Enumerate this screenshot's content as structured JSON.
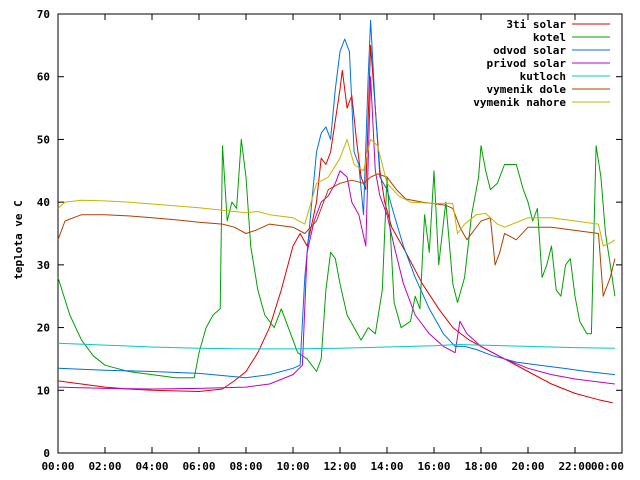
{
  "chart_data": {
    "type": "line",
    "title": "",
    "xlabel": "",
    "ylabel": "teplota ve C",
    "ylim": [
      0,
      70
    ],
    "xlim": [
      "00:00",
      "00:00"
    ],
    "x_ticks": [
      "00:00",
      "02:00",
      "04:00",
      "06:00",
      "08:00",
      "10:00",
      "12:00",
      "14:00",
      "16:00",
      "18:00",
      "20:00",
      "22:00",
      "00:00"
    ],
    "y_ticks": [
      0,
      10,
      20,
      30,
      40,
      50,
      60,
      70
    ],
    "grid": false,
    "legend_position": "top-right",
    "series": [
      {
        "name": "3ti solar",
        "color": "#e00000",
        "points": [
          [
            0,
            11.5
          ],
          [
            1,
            11
          ],
          [
            2,
            10.5
          ],
          [
            3,
            10.2
          ],
          [
            4,
            10
          ],
          [
            5,
            9.9
          ],
          [
            6,
            9.8
          ],
          [
            7,
            10.2
          ],
          [
            7.5,
            11.5
          ],
          [
            8,
            13
          ],
          [
            8.5,
            16
          ],
          [
            9,
            20
          ],
          [
            9.5,
            26
          ],
          [
            10,
            33
          ],
          [
            10.3,
            35
          ],
          [
            10.6,
            33
          ],
          [
            11,
            40
          ],
          [
            11.2,
            47
          ],
          [
            11.4,
            46
          ],
          [
            11.6,
            48
          ],
          [
            11.8,
            53
          ],
          [
            12,
            58
          ],
          [
            12.1,
            61
          ],
          [
            12.3,
            55
          ],
          [
            12.5,
            57
          ],
          [
            12.7,
            50
          ],
          [
            12.9,
            44
          ],
          [
            13.1,
            42
          ],
          [
            13.3,
            65
          ],
          [
            13.5,
            55
          ],
          [
            13.7,
            45
          ],
          [
            13.9,
            40
          ],
          [
            14.2,
            36
          ],
          [
            14.8,
            32
          ],
          [
            15.5,
            27
          ],
          [
            16.2,
            23
          ],
          [
            16.8,
            20
          ],
          [
            17.5,
            18
          ],
          [
            18,
            17
          ],
          [
            19,
            15
          ],
          [
            20,
            13
          ],
          [
            21,
            11
          ],
          [
            22,
            9.5
          ],
          [
            23,
            8.5
          ],
          [
            23.6,
            8
          ]
        ]
      },
      {
        "name": "kotel",
        "color": "#00a000",
        "points": [
          [
            0,
            28
          ],
          [
            0.5,
            22
          ],
          [
            1,
            18
          ],
          [
            1.5,
            15.5
          ],
          [
            2,
            14
          ],
          [
            3,
            13
          ],
          [
            4,
            12.5
          ],
          [
            5,
            12
          ],
          [
            5.8,
            12
          ],
          [
            6,
            16
          ],
          [
            6.3,
            20
          ],
          [
            6.6,
            22
          ],
          [
            6.9,
            23
          ],
          [
            7,
            49
          ],
          [
            7.2,
            37
          ],
          [
            7.4,
            40
          ],
          [
            7.6,
            39
          ],
          [
            7.8,
            50
          ],
          [
            8,
            44
          ],
          [
            8.2,
            33
          ],
          [
            8.5,
            26
          ],
          [
            8.8,
            22
          ],
          [
            9.2,
            20
          ],
          [
            9.5,
            23
          ],
          [
            9.8,
            20
          ],
          [
            10.2,
            16
          ],
          [
            10.6,
            15
          ],
          [
            11,
            13
          ],
          [
            11.2,
            15
          ],
          [
            11.4,
            26
          ],
          [
            11.6,
            32
          ],
          [
            11.8,
            31
          ],
          [
            12,
            27
          ],
          [
            12.3,
            22
          ],
          [
            12.6,
            20
          ],
          [
            12.9,
            18
          ],
          [
            13.2,
            20
          ],
          [
            13.5,
            19
          ],
          [
            13.8,
            26
          ],
          [
            14,
            44
          ],
          [
            14.1,
            38
          ],
          [
            14.3,
            24
          ],
          [
            14.6,
            20
          ],
          [
            15,
            21
          ],
          [
            15.2,
            25
          ],
          [
            15.4,
            23
          ],
          [
            15.6,
            38
          ],
          [
            15.8,
            32
          ],
          [
            16,
            45
          ],
          [
            16.2,
            30
          ],
          [
            16.5,
            40
          ],
          [
            16.8,
            27
          ],
          [
            17,
            24
          ],
          [
            17.3,
            28
          ],
          [
            17.6,
            38
          ],
          [
            17.9,
            44
          ],
          [
            18,
            49
          ],
          [
            18.2,
            45
          ],
          [
            18.4,
            42
          ],
          [
            18.7,
            43
          ],
          [
            19,
            46
          ],
          [
            19.5,
            46
          ],
          [
            19.8,
            42
          ],
          [
            20,
            40
          ],
          [
            20.2,
            37
          ],
          [
            20.4,
            39
          ],
          [
            20.6,
            28
          ],
          [
            20.8,
            30
          ],
          [
            21,
            33
          ],
          [
            21.2,
            26
          ],
          [
            21.4,
            25
          ],
          [
            21.6,
            30
          ],
          [
            21.8,
            31
          ],
          [
            22,
            25
          ],
          [
            22.2,
            21
          ],
          [
            22.5,
            19
          ],
          [
            22.7,
            19
          ],
          [
            22.9,
            49
          ],
          [
            23.1,
            44
          ],
          [
            23.3,
            35
          ],
          [
            23.5,
            30
          ],
          [
            23.7,
            25
          ]
        ]
      },
      {
        "name": "odvod solar",
        "color": "#0070e0",
        "points": [
          [
            0,
            13.5
          ],
          [
            2,
            13.2
          ],
          [
            4,
            13
          ],
          [
            6,
            12.7
          ],
          [
            8,
            12
          ],
          [
            9,
            12.5
          ],
          [
            10,
            13.5
          ],
          [
            10.3,
            14
          ],
          [
            10.5,
            28
          ],
          [
            10.8,
            40
          ],
          [
            11,
            48
          ],
          [
            11.2,
            51
          ],
          [
            11.4,
            52
          ],
          [
            11.6,
            50
          ],
          [
            11.8,
            58
          ],
          [
            12,
            64
          ],
          [
            12.2,
            66
          ],
          [
            12.4,
            64
          ],
          [
            12.6,
            48
          ],
          [
            12.8,
            46
          ],
          [
            13,
            38
          ],
          [
            13.2,
            60
          ],
          [
            13.3,
            69
          ],
          [
            13.5,
            55
          ],
          [
            13.7,
            44
          ],
          [
            14,
            42
          ],
          [
            14.3,
            38
          ],
          [
            14.7,
            33
          ],
          [
            15.2,
            28
          ],
          [
            15.8,
            23
          ],
          [
            16.4,
            19
          ],
          [
            16.9,
            17
          ],
          [
            17.3,
            17
          ],
          [
            17.8,
            16.5
          ],
          [
            18.5,
            15.5
          ],
          [
            19.5,
            14.5
          ],
          [
            20.5,
            14
          ],
          [
            21.5,
            13.5
          ],
          [
            22.5,
            13
          ],
          [
            23.7,
            12.5
          ]
        ]
      },
      {
        "name": "privod solar",
        "color": "#c000c0",
        "points": [
          [
            0,
            10.5
          ],
          [
            2,
            10.3
          ],
          [
            4,
            10.2
          ],
          [
            6,
            10.3
          ],
          [
            8,
            10.5
          ],
          [
            9,
            11
          ],
          [
            10,
            12.5
          ],
          [
            10.4,
            14
          ],
          [
            10.6,
            32
          ],
          [
            10.9,
            37
          ],
          [
            11.2,
            40
          ],
          [
            11.5,
            41
          ],
          [
            11.8,
            43
          ],
          [
            12,
            45
          ],
          [
            12.3,
            44
          ],
          [
            12.5,
            40
          ],
          [
            12.8,
            38
          ],
          [
            13.1,
            33
          ],
          [
            13.3,
            60
          ],
          [
            13.5,
            45
          ],
          [
            13.7,
            41
          ],
          [
            14,
            38
          ],
          [
            14.3,
            33
          ],
          [
            14.7,
            27
          ],
          [
            15.2,
            22
          ],
          [
            15.8,
            19
          ],
          [
            16.4,
            17
          ],
          [
            16.9,
            16
          ],
          [
            17.1,
            21
          ],
          [
            17.4,
            19
          ],
          [
            18,
            17
          ],
          [
            19,
            15
          ],
          [
            20,
            13.5
          ],
          [
            21,
            12.5
          ],
          [
            22,
            11.8
          ],
          [
            23.7,
            11
          ]
        ]
      },
      {
        "name": "kutloch",
        "color": "#00c8c8",
        "points": [
          [
            0,
            17.5
          ],
          [
            2,
            17.2
          ],
          [
            4,
            16.9
          ],
          [
            6,
            16.7
          ],
          [
            8,
            16.6
          ],
          [
            10,
            16.6
          ],
          [
            12,
            16.7
          ],
          [
            14,
            16.9
          ],
          [
            16,
            17.1
          ],
          [
            17,
            17.3
          ],
          [
            18,
            17.2
          ],
          [
            20,
            17
          ],
          [
            22,
            16.8
          ],
          [
            23.7,
            16.7
          ]
        ]
      },
      {
        "name": "vymenik dole",
        "color": "#b04000",
        "points": [
          [
            0,
            34
          ],
          [
            0.3,
            37
          ],
          [
            1,
            38
          ],
          [
            2,
            38
          ],
          [
            3,
            37.8
          ],
          [
            4,
            37.5
          ],
          [
            5,
            37.2
          ],
          [
            6,
            36.8
          ],
          [
            7,
            36.5
          ],
          [
            7.5,
            36
          ],
          [
            8,
            35
          ],
          [
            8.4,
            35.5
          ],
          [
            9,
            36.5
          ],
          [
            10,
            36
          ],
          [
            10.5,
            35
          ],
          [
            11,
            37
          ],
          [
            11.5,
            42
          ],
          [
            12,
            43
          ],
          [
            12.5,
            43.5
          ],
          [
            13,
            43
          ],
          [
            13.3,
            44
          ],
          [
            13.6,
            44.5
          ],
          [
            14,
            44
          ],
          [
            14.4,
            42
          ],
          [
            14.8,
            40.5
          ],
          [
            15.5,
            40
          ],
          [
            16.5,
            39.5
          ],
          [
            16.8,
            39
          ],
          [
            17.1,
            36
          ],
          [
            17.4,
            34
          ],
          [
            18,
            37
          ],
          [
            18.4,
            37.5
          ],
          [
            18.6,
            30
          ],
          [
            18.8,
            32
          ],
          [
            19,
            35
          ],
          [
            19.5,
            34
          ],
          [
            20,
            36
          ],
          [
            21,
            36
          ],
          [
            22,
            35.5
          ],
          [
            23,
            35
          ],
          [
            23.2,
            25
          ],
          [
            23.5,
            28
          ],
          [
            23.7,
            31
          ]
        ]
      },
      {
        "name": "vymenik nahore",
        "color": "#c8b400",
        "points": [
          [
            0,
            39
          ],
          [
            0.3,
            40
          ],
          [
            1,
            40.3
          ],
          [
            2,
            40.2
          ],
          [
            3,
            40
          ],
          [
            4,
            39.7
          ],
          [
            5,
            39.4
          ],
          [
            6,
            39.1
          ],
          [
            7,
            38.7
          ],
          [
            8,
            38.3
          ],
          [
            8.5,
            38.5
          ],
          [
            9,
            38
          ],
          [
            10,
            37.5
          ],
          [
            10.5,
            36.5
          ],
          [
            11,
            43
          ],
          [
            11.5,
            44
          ],
          [
            12,
            47
          ],
          [
            12.3,
            50
          ],
          [
            12.6,
            46
          ],
          [
            13,
            45
          ],
          [
            13.3,
            50
          ],
          [
            13.6,
            49
          ],
          [
            14,
            43
          ],
          [
            14.5,
            41
          ],
          [
            15,
            40
          ],
          [
            16,
            39.8
          ],
          [
            16.8,
            39.8
          ],
          [
            17,
            35
          ],
          [
            17.3,
            36.5
          ],
          [
            17.8,
            38
          ],
          [
            18.2,
            38.2
          ],
          [
            18.7,
            36.5
          ],
          [
            19,
            36
          ],
          [
            20,
            37.5
          ],
          [
            21,
            37.5
          ],
          [
            22,
            37
          ],
          [
            23,
            36.5
          ],
          [
            23.2,
            33
          ],
          [
            23.5,
            33.5
          ],
          [
            23.7,
            34
          ]
        ]
      }
    ]
  }
}
